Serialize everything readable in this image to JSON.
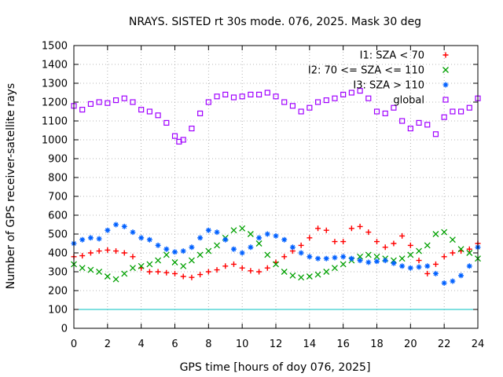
{
  "chart_data": {
    "type": "scatter",
    "title": "NRAYS. SISTED rt 30s mode. 076, 2025. Mask 30 deg",
    "xlabel": "GPS time [hours of doy 076, 2025]",
    "ylabel": "Number of GPS receiver-satellite rays",
    "xlim": [
      0,
      24
    ],
    "ylim": [
      0,
      1500
    ],
    "xticks": [
      0,
      2,
      4,
      6,
      8,
      10,
      12,
      14,
      16,
      18,
      20,
      22,
      24
    ],
    "yticks": [
      0,
      100,
      200,
      300,
      400,
      500,
      600,
      700,
      800,
      900,
      1000,
      1100,
      1200,
      1300,
      1400,
      1500
    ],
    "grid": true,
    "legend_position": "top-right",
    "reference_line": {
      "y": 100,
      "color": "#00c0c0"
    },
    "series": [
      {
        "name": "I1: SZA < 70",
        "marker": "plus",
        "color": "#ff0000",
        "x": [
          0,
          0.5,
          1,
          1.5,
          2,
          2.5,
          3,
          3.5,
          4,
          4.5,
          5,
          5.5,
          6,
          6.5,
          7,
          7.5,
          8,
          8.5,
          9,
          9.5,
          10,
          10.5,
          11,
          11.5,
          12,
          12.5,
          13,
          13.5,
          14,
          14.5,
          15,
          15.5,
          16,
          16.5,
          17,
          17.5,
          18,
          18.5,
          19,
          19.5,
          20,
          20.5,
          21,
          21.5,
          22,
          22.5,
          23,
          23.5,
          24
        ],
        "y": [
          380,
          385,
          400,
          410,
          415,
          410,
          400,
          380,
          320,
          300,
          300,
          295,
          290,
          275,
          270,
          285,
          300,
          310,
          330,
          340,
          320,
          305,
          300,
          320,
          350,
          380,
          410,
          440,
          480,
          530,
          520,
          460,
          460,
          530,
          540,
          510,
          460,
          430,
          450,
          490,
          440,
          360,
          290,
          340,
          380,
          400,
          410,
          420,
          450
        ]
      },
      {
        "name": "I2: 70 <= SZA <= 110",
        "marker": "cross",
        "color": "#00a000",
        "x": [
          0,
          0.5,
          1,
          1.5,
          2,
          2.5,
          3,
          3.5,
          4,
          4.5,
          5,
          5.5,
          6,
          6.5,
          7,
          7.5,
          8,
          8.5,
          9,
          9.5,
          10,
          10.5,
          11,
          11.5,
          12,
          12.5,
          13,
          13.5,
          14,
          14.5,
          15,
          15.5,
          16,
          16.5,
          17,
          17.5,
          18,
          18.5,
          19,
          19.5,
          20,
          20.5,
          21,
          21.5,
          22,
          22.5,
          23,
          23.5,
          24
        ],
        "y": [
          340,
          320,
          310,
          300,
          275,
          260,
          290,
          320,
          330,
          340,
          360,
          390,
          350,
          330,
          360,
          390,
          410,
          440,
          480,
          520,
          530,
          500,
          450,
          390,
          340,
          300,
          280,
          270,
          275,
          285,
          300,
          320,
          340,
          360,
          380,
          390,
          380,
          370,
          360,
          370,
          390,
          410,
          440,
          500,
          510,
          470,
          420,
          400,
          370
        ]
      },
      {
        "name": "I3: SZA > 110",
        "marker": "star",
        "color": "#0060ff",
        "x": [
          0,
          0.5,
          1,
          1.5,
          2,
          2.5,
          3,
          3.5,
          4,
          4.5,
          5,
          5.5,
          6,
          6.5,
          7,
          7.5,
          8,
          8.5,
          9,
          9.5,
          10,
          10.5,
          11,
          11.5,
          12,
          12.5,
          13,
          13.5,
          14,
          14.5,
          15,
          15.5,
          16,
          16.5,
          17,
          17.5,
          18,
          18.5,
          19,
          19.5,
          20,
          20.5,
          21,
          21.5,
          22,
          22.5,
          23,
          23.5,
          24
        ],
        "y": [
          450,
          470,
          480,
          475,
          520,
          550,
          540,
          510,
          480,
          470,
          440,
          420,
          405,
          410,
          430,
          480,
          520,
          510,
          470,
          420,
          400,
          430,
          480,
          500,
          490,
          470,
          430,
          400,
          380,
          370,
          370,
          375,
          380,
          370,
          360,
          350,
          355,
          360,
          345,
          330,
          320,
          325,
          330,
          290,
          240,
          250,
          280,
          330,
          430
        ]
      },
      {
        "name": "global",
        "marker": "square",
        "color": "#a000ff",
        "x": [
          0,
          0.5,
          1,
          1.5,
          2,
          2.5,
          3,
          3.5,
          4,
          4.5,
          5,
          5.5,
          6,
          6.25,
          6.5,
          7,
          7.5,
          8,
          8.5,
          9,
          9.5,
          10,
          10.5,
          11,
          11.5,
          12,
          12.5,
          13,
          13.5,
          14,
          14.5,
          15,
          15.5,
          16,
          16.5,
          17,
          17.5,
          18,
          18.5,
          19,
          19.5,
          20,
          20.5,
          21,
          21.5,
          22,
          22.5,
          23,
          23.5,
          24
        ],
        "y": [
          1180,
          1160,
          1190,
          1200,
          1195,
          1210,
          1220,
          1200,
          1160,
          1150,
          1130,
          1090,
          1020,
          990,
          1000,
          1060,
          1140,
          1200,
          1230,
          1240,
          1225,
          1230,
          1240,
          1240,
          1250,
          1230,
          1200,
          1180,
          1150,
          1170,
          1200,
          1210,
          1220,
          1240,
          1250,
          1260,
          1220,
          1150,
          1140,
          1170,
          1100,
          1060,
          1090,
          1080,
          1030,
          1120,
          1150,
          1150,
          1170,
          1220
        ]
      }
    ]
  }
}
